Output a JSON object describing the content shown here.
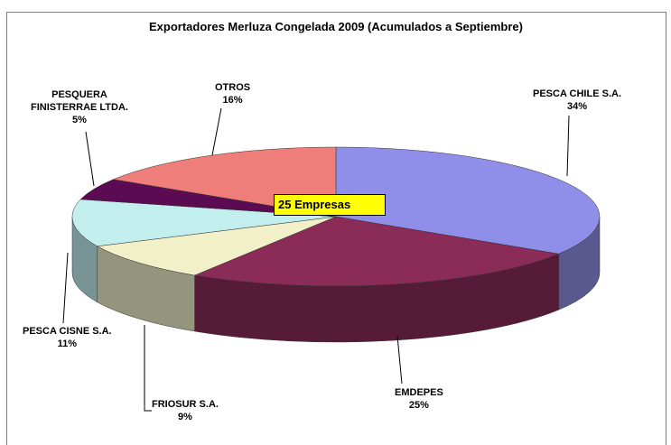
{
  "chart_data": {
    "type": "pie3d",
    "title": "Exportadores Merluza Congelada 2009 (Acumulados a Septiembre)",
    "annotation": "25 Empresas",
    "categories": [
      "PESCA CHILE S.A.",
      "EMDEPES",
      "FRIOSUR S.A.",
      "PESCA CISNE S.A.",
      "PESQUERA FINISTERRAE LTDA.",
      "OTROS"
    ],
    "values": [
      34,
      25,
      9,
      11,
      5,
      16
    ],
    "value_labels": [
      "34%",
      "25%",
      "9%",
      "11%",
      "5%",
      "16%"
    ],
    "colors": [
      "#8f8fe9",
      "#8b2b57",
      "#f1f0c9",
      "#c2eeee",
      "#5b0b52",
      "#ef7d79"
    ]
  }
}
